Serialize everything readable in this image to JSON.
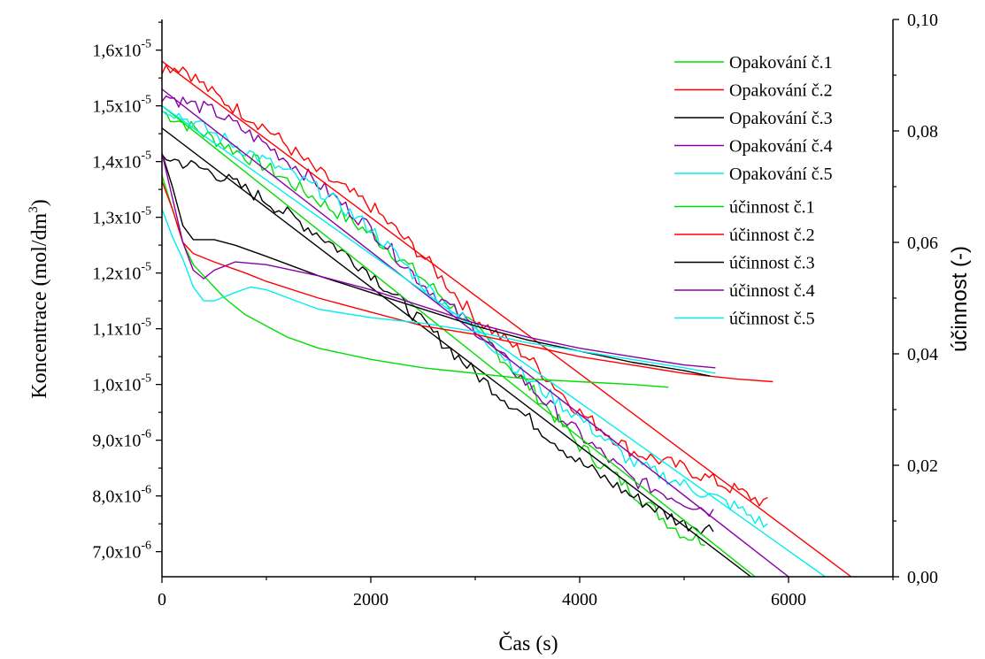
{
  "chart_data": {
    "type": "line",
    "xlabel": "Čas (s)",
    "ylabel": "Koncentrace (mol/dm³)",
    "ylabel_right": "účinnost (-)",
    "xlim": [
      0,
      7000
    ],
    "ylim": [
      6.55e-06,
      1.655e-05
    ],
    "ylim_right": [
      0,
      0.1
    ],
    "x_ticks": [
      {
        "value": 0,
        "label": "0"
      },
      {
        "value": 2000,
        "label": "2000"
      },
      {
        "value": 4000,
        "label": "4000"
      },
      {
        "value": 6000,
        "label": "6000"
      }
    ],
    "y_ticks": [
      {
        "value": 7e-06,
        "mantissa": "7,0x10",
        "exp": "-6"
      },
      {
        "value": 8e-06,
        "mantissa": "8,0x10",
        "exp": "-6"
      },
      {
        "value": 9e-06,
        "mantissa": "9,0x10",
        "exp": "-6"
      },
      {
        "value": 1e-05,
        "mantissa": "1,0x10",
        "exp": "-5"
      },
      {
        "value": 1.1e-05,
        "mantissa": "1,1x10",
        "exp": "-5"
      },
      {
        "value": 1.2e-05,
        "mantissa": "1,2x10",
        "exp": "-5"
      },
      {
        "value": 1.3e-05,
        "mantissa": "1,3x10",
        "exp": "-5"
      },
      {
        "value": 1.4e-05,
        "mantissa": "1,4x10",
        "exp": "-5"
      },
      {
        "value": 1.5e-05,
        "mantissa": "1,5x10",
        "exp": "-5"
      },
      {
        "value": 1.6e-05,
        "mantissa": "1,6x10",
        "exp": "-5"
      }
    ],
    "y_right_ticks": [
      {
        "value": 0.0,
        "label": "0,00"
      },
      {
        "value": 0.02,
        "label": "0,02"
      },
      {
        "value": 0.04,
        "label": "0,04"
      },
      {
        "value": 0.06,
        "label": "0,06"
      },
      {
        "value": 0.08,
        "label": "0,08"
      },
      {
        "value": 0.1,
        "label": "0,10"
      }
    ],
    "legend_position": "top-right",
    "series": [
      {
        "name": "Opakování č.1",
        "color": "#00dd00",
        "axis": "left",
        "kind": "noisy",
        "x": [
          0,
          500,
          1000,
          1500,
          2000,
          2500,
          3000,
          3500,
          4000,
          4500,
          4800,
          5000,
          5200
        ],
        "y": [
          1.49e-05,
          1.44e-05,
          1.39e-05,
          1.33e-05,
          1.27e-05,
          1.19e-05,
          1.1e-05,
          1e-05,
          8.9e-06,
          8.1e-06,
          7.6e-06,
          7.3e-06,
          7.2e-06
        ]
      },
      {
        "name": "Opakování č.2",
        "color": "#ff0000",
        "axis": "left",
        "kind": "noisy",
        "x": [
          0,
          200,
          500,
          1000,
          1500,
          2000,
          2500,
          3000,
          3500,
          4000,
          4500,
          5000,
          5500,
          5800
        ],
        "y": [
          1.57e-05,
          1.57e-05,
          1.52e-05,
          1.46e-05,
          1.38e-05,
          1.32e-05,
          1.23e-05,
          1.12e-05,
          1.05e-05,
          9.5e-06,
          8.8e-06,
          8.5e-06,
          8.1e-06,
          7.85e-06
        ]
      },
      {
        "name": "Opakování č.3",
        "color": "#000000",
        "axis": "left",
        "kind": "noisy",
        "x": [
          0,
          500,
          1000,
          1500,
          2000,
          2500,
          3000,
          3500,
          4000,
          4500,
          5000,
          5300
        ],
        "y": [
          1.41e-05,
          1.38e-05,
          1.33e-05,
          1.27e-05,
          1.2e-05,
          1.11e-05,
          1.02e-05,
          9.4e-06,
          8.6e-06,
          8e-06,
          7.5e-06,
          7.4e-06
        ]
      },
      {
        "name": "Opakování č.4",
        "color": "#8800aa",
        "axis": "left",
        "kind": "noisy",
        "x": [
          0,
          500,
          1000,
          1500,
          2000,
          2500,
          3000,
          3500,
          4000,
          4500,
          5000,
          5300
        ],
        "y": [
          1.52e-05,
          1.49e-05,
          1.43e-05,
          1.36e-05,
          1.28e-05,
          1.18e-05,
          1.1e-05,
          1e-05,
          9.1e-06,
          8.3e-06,
          7.9e-06,
          7.7e-06
        ]
      },
      {
        "name": "Opakování č.5",
        "color": "#00eeee",
        "axis": "left",
        "kind": "noisy",
        "x": [
          0,
          500,
          1000,
          1500,
          2000,
          2500,
          3000,
          3500,
          4000,
          4500,
          5000,
          5500,
          5800
        ],
        "y": [
          1.5e-05,
          1.45e-05,
          1.4e-05,
          1.35e-05,
          1.28e-05,
          1.18e-05,
          1.1e-05,
          1.01e-05,
          9.4e-06,
          8.6e-06,
          8.2e-06,
          7.8e-06,
          7.45e-06
        ]
      },
      {
        "name": "",
        "color": "#00dd00",
        "axis": "left",
        "kind": "fit",
        "x": [
          0,
          5680
        ],
        "y": [
          1.5e-05,
          6.55e-06
        ]
      },
      {
        "name": "",
        "color": "#ff0000",
        "axis": "left",
        "kind": "fit",
        "x": [
          0,
          6600
        ],
        "y": [
          1.58e-05,
          6.55e-06
        ]
      },
      {
        "name": "",
        "color": "#000000",
        "axis": "left",
        "kind": "fit",
        "x": [
          0,
          5640
        ],
        "y": [
          1.46e-05,
          6.55e-06
        ]
      },
      {
        "name": "",
        "color": "#8800aa",
        "axis": "left",
        "kind": "fit",
        "x": [
          0,
          6000
        ],
        "y": [
          1.53e-05,
          6.55e-06
        ]
      },
      {
        "name": "",
        "color": "#00eeee",
        "axis": "left",
        "kind": "fit",
        "x": [
          0,
          6350
        ],
        "y": [
          1.5e-05,
          6.55e-06
        ]
      },
      {
        "name": "účinnost č.1",
        "color": "#00dd00",
        "axis": "right",
        "kind": "smooth",
        "x": [
          0,
          100,
          200,
          300,
          400,
          600,
          800,
          1000,
          1200,
          1500,
          2000,
          2500,
          3000,
          3500,
          4000,
          4500,
          4850
        ],
        "y": [
          0.072,
          0.066,
          0.06,
          0.056,
          0.054,
          0.05,
          0.047,
          0.045,
          0.043,
          0.041,
          0.039,
          0.0375,
          0.0365,
          0.0355,
          0.035,
          0.0345,
          0.034
        ]
      },
      {
        "name": "účinnost č.2",
        "color": "#ff0000",
        "axis": "right",
        "kind": "smooth",
        "x": [
          0,
          100,
          200,
          300,
          500,
          800,
          1000,
          1500,
          2000,
          2500,
          3000,
          3500,
          4000,
          4500,
          5000,
          5500,
          5850
        ],
        "y": [
          0.071,
          0.066,
          0.06,
          0.058,
          0.0565,
          0.0545,
          0.053,
          0.05,
          0.0475,
          0.045,
          0.0435,
          0.0415,
          0.0395,
          0.038,
          0.0365,
          0.0355,
          0.035
        ]
      },
      {
        "name": "účinnost č.3",
        "color": "#000000",
        "axis": "right",
        "kind": "smooth",
        "x": [
          0,
          100,
          200,
          300,
          500,
          700,
          1000,
          1500,
          2000,
          2500,
          3000,
          3500,
          4000,
          4500,
          5000,
          5250
        ],
        "y": [
          0.076,
          0.07,
          0.063,
          0.0605,
          0.0605,
          0.0595,
          0.0575,
          0.054,
          0.051,
          0.048,
          0.045,
          0.0425,
          0.0405,
          0.0385,
          0.037,
          0.036
        ]
      },
      {
        "name": "účinnost č.4",
        "color": "#8800aa",
        "axis": "right",
        "kind": "smooth",
        "x": [
          0,
          100,
          200,
          300,
          400,
          500,
          700,
          1000,
          1500,
          2000,
          2500,
          3000,
          3500,
          4000,
          4500,
          5000,
          5300
        ],
        "y": [
          0.076,
          0.068,
          0.06,
          0.055,
          0.0535,
          0.055,
          0.0565,
          0.056,
          0.054,
          0.0515,
          0.0485,
          0.0455,
          0.043,
          0.041,
          0.0395,
          0.038,
          0.0375
        ]
      },
      {
        "name": "účinnost č.5",
        "color": "#00eeee",
        "axis": "right",
        "kind": "smooth",
        "x": [
          0,
          100,
          200,
          300,
          400,
          500,
          700,
          850,
          1000,
          1500,
          2000,
          2500,
          3000,
          3500,
          4000,
          4500,
          5000,
          5300
        ],
        "y": [
          0.066,
          0.061,
          0.057,
          0.052,
          0.0495,
          0.0495,
          0.051,
          0.052,
          0.0515,
          0.048,
          0.0465,
          0.0455,
          0.044,
          0.042,
          0.0405,
          0.039,
          0.0375,
          0.0365
        ]
      }
    ]
  }
}
